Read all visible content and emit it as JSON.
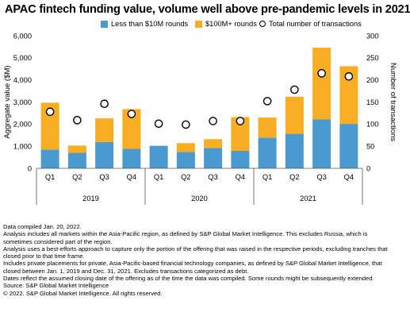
{
  "title": "APAC fintech funding value, volume well above pre-pandemic levels in 2021",
  "legend": {
    "small": "Less than $10M rounds",
    "large": "$100M+ rounds",
    "total": "Total number of transactions"
  },
  "colors": {
    "small": "#4a9ad0",
    "large": "#f7ae22",
    "marker": "#000000",
    "axis": "#555555"
  },
  "chart_data": {
    "type": "bar",
    "stacked": true,
    "categories": [
      "Q1",
      "Q2",
      "Q3",
      "Q4",
      "Q1",
      "Q2",
      "Q3",
      "Q4",
      "Q1",
      "Q2",
      "Q3",
      "Q4"
    ],
    "groups": [
      {
        "label": "2019",
        "span": [
          0,
          3
        ]
      },
      {
        "label": "2020",
        "span": [
          4,
          7
        ]
      },
      {
        "label": "2021",
        "span": [
          8,
          11
        ]
      }
    ],
    "series": [
      {
        "name": "Less than $10M rounds",
        "values": [
          850,
          700,
          1190,
          880,
          1020,
          740,
          920,
          790,
          1390,
          1560,
          2220,
          2010
        ],
        "axis": "left"
      },
      {
        "name": "$100M+ rounds",
        "values": [
          2120,
          330,
          1070,
          1800,
          0,
          400,
          400,
          1530,
          910,
          1680,
          3240,
          2610
        ],
        "axis": "left"
      },
      {
        "name": "Total number of transactions",
        "values": [
          128,
          109,
          146,
          123,
          101,
          99,
          107,
          107,
          152,
          178,
          215,
          208
        ],
        "axis": "right",
        "marker": "circle"
      }
    ],
    "ylabel": "Aggregate value ($M)",
    "y2label": "Number of transactions",
    "ylim": [
      0,
      6000
    ],
    "yticks": [
      "0",
      "1,000",
      "2,000",
      "3,000",
      "4,000",
      "5,000",
      "6,000"
    ],
    "y2lim": [
      0,
      300
    ],
    "y2ticks": [
      "0",
      "50",
      "100",
      "150",
      "200",
      "250",
      "300"
    ],
    "grid": false,
    "legend_position": "top"
  },
  "notes": [
    "Data compiled Jan. 20, 2022.",
    "Analysis includes all markets within the Asia-Pacific region, as defined by S&P Global Market Intelligence. This excludes Russia, which is sometimes considered part of the region.",
    "Analysis uses a best-efforts approach to capture only the portion of the offering that was raised in the respective periods, excluding tranches that closed prior to that time frame.",
    "Includes private placements for private, Asia-Pacific-based financial technology companies, as defined by S&P Global Market Intelligence, that closed between Jan. 1, 2019 and Dec. 31, 2021. Excludes transactions categorized as debt.",
    "Dates reflect the assumed closing date of the offering as of the time the data was compiled. Some rounds might be subsequently extended.",
    "Source: S&P Global Market Intelligence",
    "© 2022. S&P Global Market Intelligence. All rights reserved."
  ]
}
